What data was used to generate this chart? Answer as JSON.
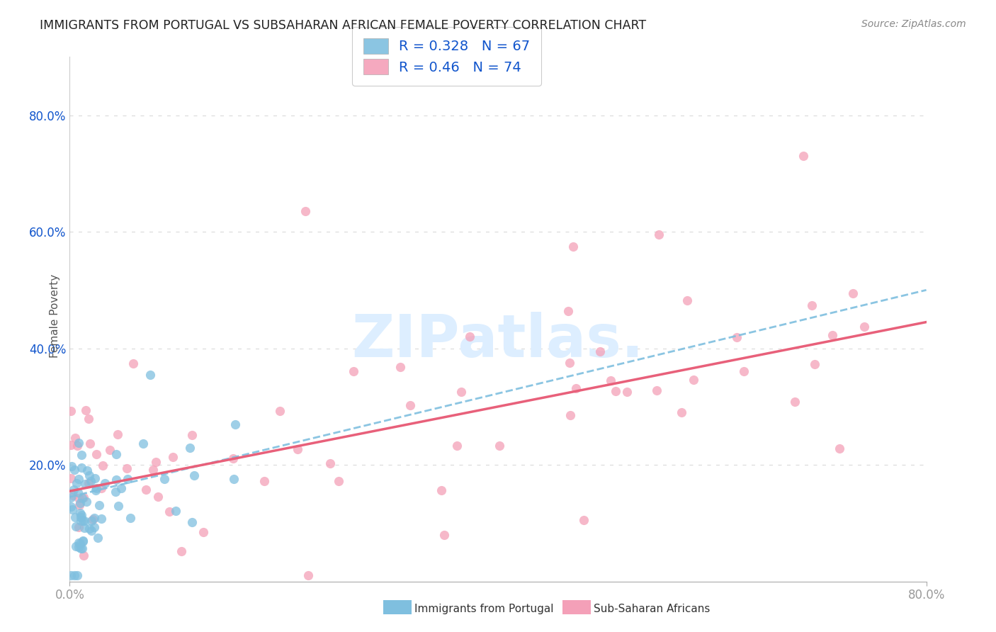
{
  "title": "IMMIGRANTS FROM PORTUGAL VS SUBSAHARAN AFRICAN FEMALE POVERTY CORRELATION CHART",
  "source": "Source: ZipAtlas.com",
  "ylabel": "Female Poverty",
  "r_portugal": 0.328,
  "n_portugal": 67,
  "r_subsaharan": 0.46,
  "n_subsaharan": 74,
  "color_portugal": "#7fbfdf",
  "color_subsaharan": "#f4a0b8",
  "color_portugal_line_dash": "#7fbfdf",
  "color_subsaharan_line": "#e8607a",
  "legend_label_portugal": "Immigrants from Portugal",
  "legend_label_subsaharan": "Sub-Saharan Africans",
  "watermark_text": "ZIPatlas.",
  "xlim": [
    0.0,
    0.8
  ],
  "ylim": [
    0.0,
    0.9
  ],
  "yticks": [
    0.0,
    0.2,
    0.4,
    0.6,
    0.8
  ],
  "ytick_labels": [
    "",
    "20.0%",
    "40.0%",
    "60.0%",
    "80.0%"
  ],
  "blue_line_start_y": 0.145,
  "blue_line_end_y": 0.5,
  "pink_line_start_y": 0.155,
  "pink_line_end_y": 0.445,
  "legend_r_color": "#1155cc",
  "background_color": "#ffffff",
  "grid_color": "#dddddd",
  "title_color": "#222222",
  "source_color": "#888888",
  "axis_color": "#999999",
  "tick_label_color": "#1155cc"
}
